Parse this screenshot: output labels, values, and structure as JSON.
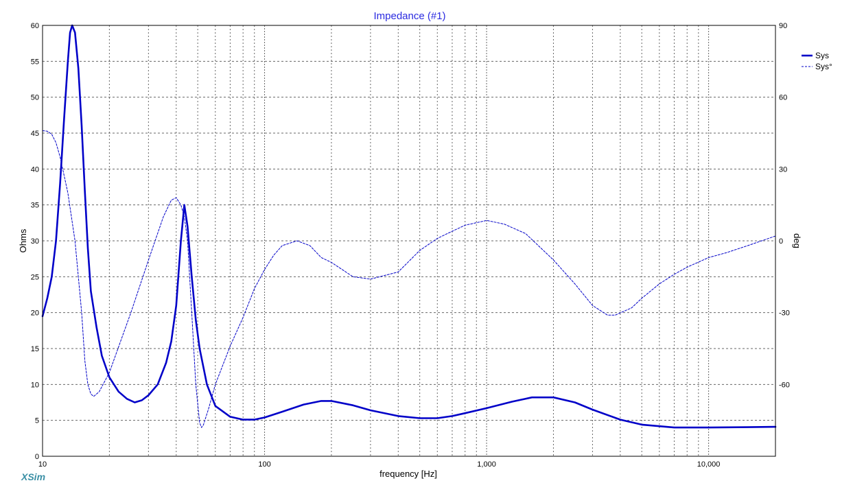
{
  "colors": {
    "series": "#0000c8",
    "title": "#2a2ae0",
    "brand": "#3a8fa5",
    "grid": "#666666",
    "frame": "#000000"
  },
  "brand": "XSim",
  "chart_data": {
    "type": "line",
    "title": "Impedance (#1)",
    "xlabel": "frequency [Hz]",
    "ylabel": "Ohms",
    "ylabel_right": "deg",
    "x_scale": "log",
    "xlim": [
      10,
      20000
    ],
    "ylim": [
      0,
      60
    ],
    "ylim_right": [
      -90,
      90
    ],
    "x_ticks": [
      {
        "value": 10,
        "label": "10"
      },
      {
        "value": 100,
        "label": "100"
      },
      {
        "value": 1000,
        "label": "1,000"
      },
      {
        "value": 10000,
        "label": "10,000"
      }
    ],
    "y_ticks": [
      {
        "value": 0,
        "label": "0"
      },
      {
        "value": 5,
        "label": "5"
      },
      {
        "value": 10,
        "label": "10"
      },
      {
        "value": 15,
        "label": "15"
      },
      {
        "value": 20,
        "label": "20"
      },
      {
        "value": 25,
        "label": "25"
      },
      {
        "value": 30,
        "label": "30"
      },
      {
        "value": 35,
        "label": "35"
      },
      {
        "value": 40,
        "label": "40"
      },
      {
        "value": 45,
        "label": "45"
      },
      {
        "value": 50,
        "label": "50"
      },
      {
        "value": 55,
        "label": "55"
      },
      {
        "value": 60,
        "label": "60"
      }
    ],
    "y_ticks_right": [
      {
        "value": 90,
        "label": "90"
      },
      {
        "value": 60,
        "label": "60"
      },
      {
        "value": 30,
        "label": "30"
      },
      {
        "value": 0,
        "label": "0"
      },
      {
        "value": -30,
        "label": "-30"
      },
      {
        "value": -60,
        "label": "-60"
      }
    ],
    "grid": true,
    "legend_position": "top-right",
    "series": [
      {
        "name": "Sys",
        "axis": "left",
        "style": "solid-thick",
        "points": [
          [
            10,
            19.5
          ],
          [
            10.5,
            22
          ],
          [
            11,
            25
          ],
          [
            11.5,
            30
          ],
          [
            12,
            38
          ],
          [
            12.5,
            47
          ],
          [
            13,
            55
          ],
          [
            13.3,
            59
          ],
          [
            13.6,
            60
          ],
          [
            14,
            59
          ],
          [
            14.5,
            54
          ],
          [
            15,
            46
          ],
          [
            15.5,
            37
          ],
          [
            16,
            29
          ],
          [
            16.5,
            23
          ],
          [
            17.5,
            18
          ],
          [
            18.5,
            14
          ],
          [
            20,
            11
          ],
          [
            22,
            9
          ],
          [
            24,
            8
          ],
          [
            26,
            7.5
          ],
          [
            28,
            7.8
          ],
          [
            30,
            8.5
          ],
          [
            33,
            10
          ],
          [
            36,
            13
          ],
          [
            38,
            16
          ],
          [
            40,
            21
          ],
          [
            42,
            30
          ],
          [
            43.5,
            35
          ],
          [
            45,
            32
          ],
          [
            47,
            25
          ],
          [
            49,
            19
          ],
          [
            51,
            15
          ],
          [
            55,
            10
          ],
          [
            60,
            7
          ],
          [
            70,
            5.5
          ],
          [
            80,
            5.1
          ],
          [
            90,
            5.1
          ],
          [
            100,
            5.4
          ],
          [
            120,
            6.2
          ],
          [
            150,
            7.2
          ],
          [
            180,
            7.7
          ],
          [
            200,
            7.7
          ],
          [
            250,
            7.1
          ],
          [
            300,
            6.4
          ],
          [
            400,
            5.6
          ],
          [
            500,
            5.3
          ],
          [
            600,
            5.3
          ],
          [
            700,
            5.6
          ],
          [
            800,
            6
          ],
          [
            1000,
            6.7
          ],
          [
            1300,
            7.6
          ],
          [
            1600,
            8.2
          ],
          [
            2000,
            8.2
          ],
          [
            2500,
            7.5
          ],
          [
            3000,
            6.5
          ],
          [
            4000,
            5.1
          ],
          [
            5000,
            4.4
          ],
          [
            7000,
            4
          ],
          [
            10000,
            4
          ],
          [
            15000,
            4.05
          ],
          [
            20000,
            4.1
          ]
        ]
      },
      {
        "name": "Sys°",
        "axis": "right",
        "style": "dashed",
        "points": [
          [
            10,
            46
          ],
          [
            10.5,
            45.8
          ],
          [
            11,
            44.5
          ],
          [
            11.5,
            41
          ],
          [
            12,
            35
          ],
          [
            13,
            20
          ],
          [
            14,
            0
          ],
          [
            15,
            -30
          ],
          [
            15.5,
            -50
          ],
          [
            16,
            -60
          ],
          [
            16.5,
            -64
          ],
          [
            17,
            -65
          ],
          [
            18,
            -63
          ],
          [
            20,
            -55
          ],
          [
            25,
            -30
          ],
          [
            30,
            -8
          ],
          [
            35,
            10
          ],
          [
            38,
            17
          ],
          [
            40,
            18
          ],
          [
            42,
            15
          ],
          [
            43.5,
            10
          ],
          [
            45,
            0
          ],
          [
            47,
            -30
          ],
          [
            49,
            -60
          ],
          [
            51,
            -76
          ],
          [
            52,
            -78
          ],
          [
            53,
            -77
          ],
          [
            56,
            -70
          ],
          [
            60,
            -60
          ],
          [
            70,
            -44
          ],
          [
            80,
            -32
          ],
          [
            90,
            -20
          ],
          [
            100,
            -12
          ],
          [
            110,
            -6
          ],
          [
            120,
            -2
          ],
          [
            140,
            0
          ],
          [
            160,
            -2
          ],
          [
            180,
            -7
          ],
          [
            200,
            -9
          ],
          [
            250,
            -15
          ],
          [
            300,
            -16
          ],
          [
            400,
            -13
          ],
          [
            500,
            -4
          ],
          [
            600,
            1
          ],
          [
            700,
            4
          ],
          [
            800,
            6.5
          ],
          [
            1000,
            8.5
          ],
          [
            1200,
            7
          ],
          [
            1500,
            3
          ],
          [
            2000,
            -8
          ],
          [
            2500,
            -18
          ],
          [
            3000,
            -27
          ],
          [
            3500,
            -31
          ],
          [
            3800,
            -31
          ],
          [
            4500,
            -28
          ],
          [
            5000,
            -24
          ],
          [
            6000,
            -18
          ],
          [
            7000,
            -14
          ],
          [
            8000,
            -11
          ],
          [
            10000,
            -7
          ],
          [
            12000,
            -5
          ],
          [
            15000,
            -2
          ],
          [
            20000,
            2
          ]
        ]
      }
    ]
  }
}
